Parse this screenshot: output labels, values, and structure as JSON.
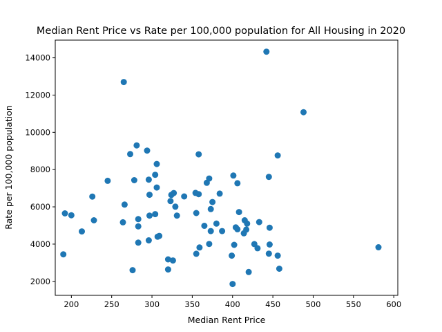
{
  "chart_data": {
    "type": "scatter",
    "title": "Median Rent Price vs Rate per 100,000 population for All Housing in 2020",
    "xlabel": "Median Rent Price",
    "ylabel": "Rate per 100,000 population",
    "xlim": [
      180,
      605
    ],
    "ylim": [
      1250,
      14950
    ],
    "xticks": [
      200,
      250,
      300,
      350,
      400,
      450,
      500,
      550,
      600
    ],
    "yticks": [
      2000,
      4000,
      6000,
      8000,
      10000,
      12000,
      14000
    ],
    "grid": false,
    "marker_color": "#1f77b4",
    "points": [
      [
        190,
        3450
      ],
      [
        192,
        5650
      ],
      [
        200,
        5550
      ],
      [
        213,
        4680
      ],
      [
        226,
        6550
      ],
      [
        228,
        5280
      ],
      [
        245,
        7400
      ],
      [
        264,
        5170
      ],
      [
        265,
        12700
      ],
      [
        266,
        6120
      ],
      [
        273,
        8830
      ],
      [
        276,
        2600
      ],
      [
        278,
        7430
      ],
      [
        281,
        9300
      ],
      [
        283,
        4950
      ],
      [
        283,
        5340
      ],
      [
        283,
        4080
      ],
      [
        294,
        9020
      ],
      [
        296,
        7460
      ],
      [
        296,
        4200
      ],
      [
        297,
        6650
      ],
      [
        297,
        5530
      ],
      [
        304,
        5610
      ],
      [
        304,
        7720
      ],
      [
        306,
        8300
      ],
      [
        306,
        7040
      ],
      [
        307,
        4400
      ],
      [
        309,
        4440
      ],
      [
        320,
        3180
      ],
      [
        320,
        2640
      ],
      [
        323,
        6310
      ],
      [
        324,
        6640
      ],
      [
        326,
        3120
      ],
      [
        327,
        6740
      ],
      [
        329,
        6010
      ],
      [
        331,
        5530
      ],
      [
        340,
        6560
      ],
      [
        354,
        6750
      ],
      [
        355,
        5670
      ],
      [
        355,
        3480
      ],
      [
        358,
        8820
      ],
      [
        358,
        6680
      ],
      [
        359,
        3820
      ],
      [
        365,
        4980
      ],
      [
        368,
        7290
      ],
      [
        371,
        7520
      ],
      [
        371,
        4010
      ],
      [
        373,
        5880
      ],
      [
        373,
        4700
      ],
      [
        375,
        6260
      ],
      [
        380,
        5100
      ],
      [
        384,
        6710
      ],
      [
        387,
        4700
      ],
      [
        399,
        3380
      ],
      [
        400,
        1860
      ],
      [
        401,
        7680
      ],
      [
        402,
        3960
      ],
      [
        404,
        4900
      ],
      [
        406,
        7270
      ],
      [
        406,
        4800
      ],
      [
        408,
        5720
      ],
      [
        414,
        4580
      ],
      [
        415,
        5280
      ],
      [
        417,
        4780
      ],
      [
        418,
        5100
      ],
      [
        420,
        2500
      ],
      [
        427,
        4000
      ],
      [
        431,
        3780
      ],
      [
        433,
        5180
      ],
      [
        442,
        14330
      ],
      [
        445,
        7610
      ],
      [
        445,
        3490
      ],
      [
        446,
        4880
      ],
      [
        446,
        3980
      ],
      [
        456,
        3380
      ],
      [
        456,
        8760
      ],
      [
        458,
        2680
      ],
      [
        488,
        11080
      ],
      [
        581,
        3830
      ]
    ]
  }
}
